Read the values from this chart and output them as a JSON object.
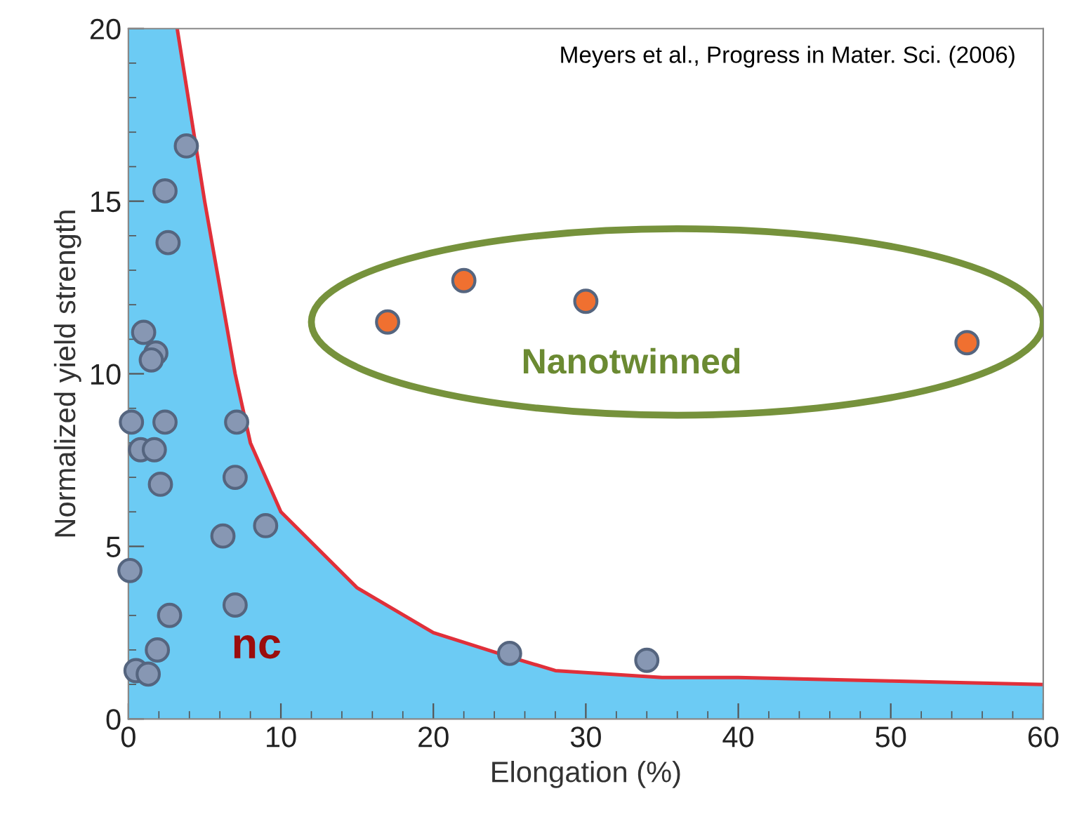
{
  "chart_data": {
    "type": "scatter",
    "xlabel": "Elongation (%)",
    "ylabel": "Normalized yield strength",
    "xlim": [
      0,
      60
    ],
    "ylim": [
      0,
      20
    ],
    "xticks": [
      0,
      10,
      20,
      30,
      40,
      50,
      60
    ],
    "yticks": [
      0,
      5,
      10,
      15,
      20
    ],
    "grid": false,
    "series": [
      {
        "type": "area",
        "color": "#6ccbf4",
        "x": [
          0,
          3.2,
          5,
          7,
          7.5,
          8,
          10,
          15,
          20,
          25,
          28,
          35,
          40,
          50,
          60
        ],
        "values": [
          20,
          20,
          15,
          10,
          9,
          8,
          6,
          3.8,
          2.5,
          1.8,
          1.4,
          1.2,
          1.2,
          1.1,
          1.0
        ]
      },
      {
        "type": "line",
        "color": "#e0303a",
        "x": [
          3.2,
          5,
          7,
          7.5,
          8,
          10,
          15,
          20,
          25,
          28,
          35,
          40,
          50,
          60
        ],
        "values": [
          20,
          15,
          10,
          9,
          8,
          6,
          3.8,
          2.5,
          1.8,
          1.4,
          1.2,
          1.2,
          1.1,
          1.0
        ]
      },
      {
        "color": "#8797b3",
        "marker": "circle",
        "x": [
          3.8,
          2.4,
          2.6,
          1.0,
          1.8,
          1.5,
          0.2,
          2.4,
          0.8,
          1.7,
          2.1,
          7.1,
          7.0,
          6.2,
          9.0,
          0.1,
          2.7,
          7.0,
          1.9,
          0.5,
          1.3,
          25,
          34
        ],
        "values": [
          16.6,
          15.3,
          13.8,
          11.2,
          10.6,
          10.4,
          8.6,
          8.6,
          7.8,
          7.8,
          6.8,
          8.6,
          7.0,
          5.3,
          5.6,
          4.3,
          3.0,
          3.3,
          2.0,
          1.4,
          1.3,
          1.9,
          1.7
        ]
      },
      {
        "color": "#f07030",
        "marker": "circle",
        "x": [
          17,
          22,
          30,
          55
        ],
        "values": [
          11.5,
          12.7,
          12.1,
          10.9
        ]
      }
    ],
    "annotations": [
      "Meyers et al., Progress in Mater. Sci. (2006)",
      "nc",
      "Nanotwinned"
    ]
  }
}
